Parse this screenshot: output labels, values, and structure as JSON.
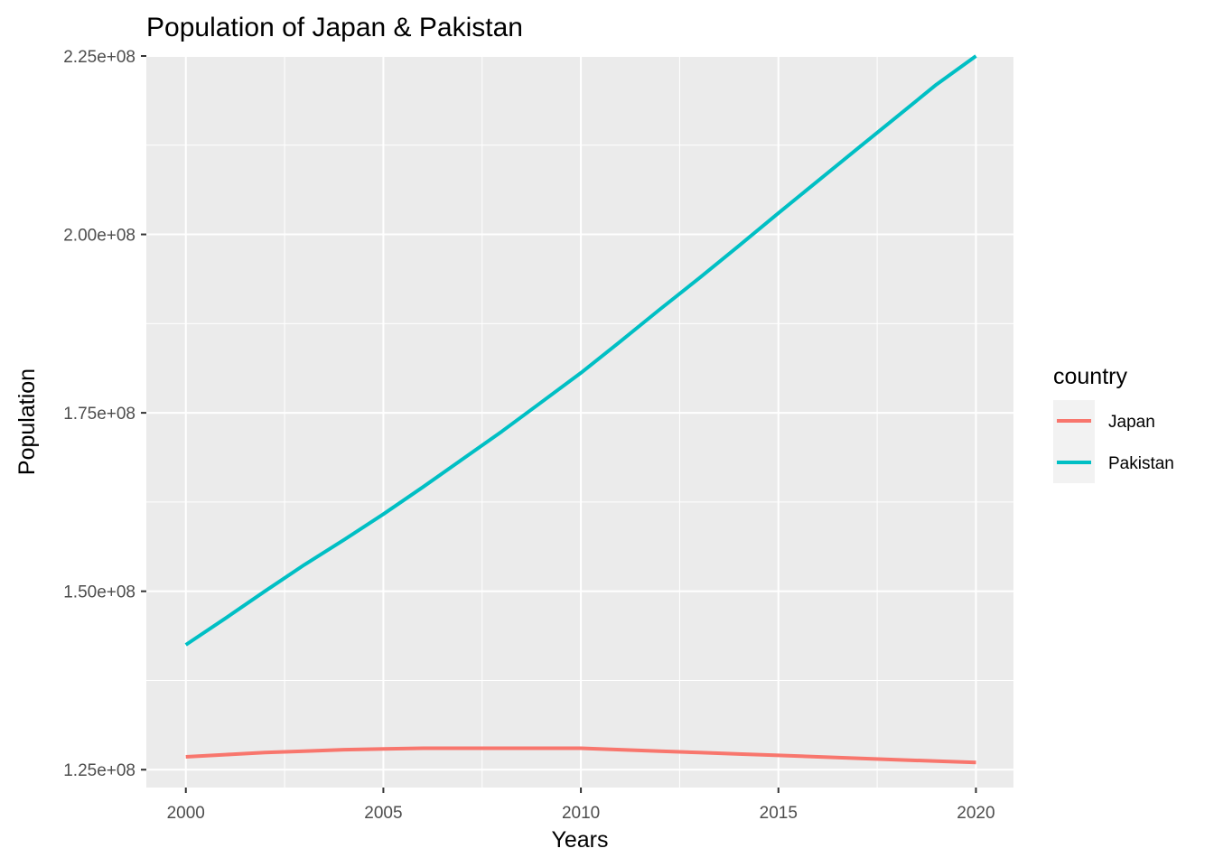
{
  "chart_data": {
    "type": "line",
    "title": "Population of Japan & Pakistan",
    "xlabel": "Years",
    "ylabel": "Population",
    "xlim": [
      1999.0,
      2020.95
    ],
    "ylim": [
      122500000,
      225000000
    ],
    "x_ticks": [
      2000,
      2005,
      2010,
      2015,
      2020
    ],
    "x_tick_labels": [
      "2000",
      "2005",
      "2010",
      "2015",
      "2020"
    ],
    "y_ticks": [
      125000000,
      150000000,
      175000000,
      200000000,
      225000000
    ],
    "y_tick_labels": [
      "1.25e+08",
      "1.50e+08",
      "1.75e+08",
      "2.00e+08",
      "2.25e+08"
    ],
    "legend_title": "country",
    "legend_position": "right",
    "grid": true,
    "x": [
      2000,
      2001,
      2002,
      2003,
      2004,
      2005,
      2006,
      2007,
      2008,
      2009,
      2010,
      2011,
      2012,
      2013,
      2014,
      2015,
      2016,
      2017,
      2018,
      2019,
      2020
    ],
    "series": [
      {
        "name": "Japan",
        "color": "#f8766d",
        "values": [
          126800000,
          127100000,
          127400000,
          127600000,
          127800000,
          127900000,
          128000000,
          128000000,
          128000000,
          128000000,
          128000000,
          127800000,
          127600000,
          127400000,
          127200000,
          127000000,
          126800000,
          126600000,
          126400000,
          126200000,
          126000000
        ]
      },
      {
        "name": "Pakistan",
        "color": "#00bfc4",
        "values": [
          142500000,
          146200000,
          150000000,
          153700000,
          157200000,
          160800000,
          164600000,
          168500000,
          172400000,
          176500000,
          180600000,
          185000000,
          189500000,
          193900000,
          198400000,
          203000000,
          207500000,
          212000000,
          216500000,
          221000000,
          225000000
        ]
      }
    ]
  }
}
